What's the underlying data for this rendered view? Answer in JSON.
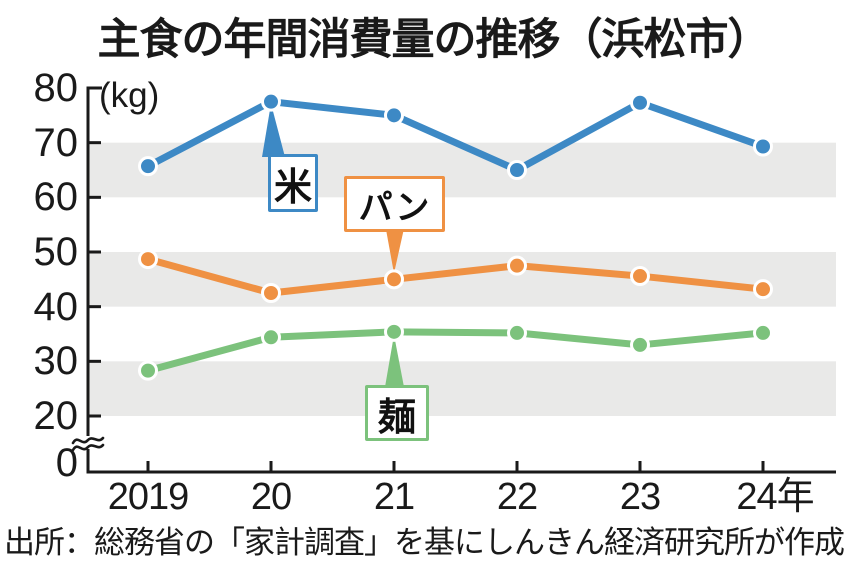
{
  "page": {
    "title": "主食の年間消費量の推移（浜松市）",
    "source": "出所：総務省の「家計調査」を基にしんきん経済研究所が作成"
  },
  "chart_data": {
    "type": "line",
    "title": "主食の年間消費量の推移（浜松市）",
    "unit_label": "(kg)",
    "ylabel": "kg",
    "x_categories": [
      "2019",
      "20",
      "21",
      "22",
      "23",
      "24年"
    ],
    "series": [
      {
        "key": "rice",
        "name": "米",
        "color": "#3d89c5",
        "values": [
          65.7,
          77.5,
          75.0,
          65.0,
          77.3,
          69.3
        ]
      },
      {
        "key": "bread",
        "name": "パン",
        "color": "#ef9143",
        "values": [
          48.7,
          42.5,
          45.0,
          47.5,
          45.6,
          43.2
        ]
      },
      {
        "key": "noodles",
        "name": "麺",
        "color": "#7cc27c",
        "values": [
          28.3,
          34.4,
          35.4,
          35.2,
          33.0,
          35.2
        ]
      }
    ],
    "ylim": [
      0,
      80
    ],
    "yticks": [
      80,
      70,
      60,
      50,
      40,
      30,
      20,
      0
    ],
    "axis_break_between": [
      0,
      20
    ],
    "band_pairs": [
      [
        70,
        60
      ],
      [
        50,
        40
      ],
      [
        30,
        20
      ]
    ],
    "band_color": "#e9e9e8",
    "axis_color": "#1a1a1a",
    "marker": "circle-white-ring",
    "grid": "banded-rows",
    "legend_position": "inline-callout-boxes"
  }
}
